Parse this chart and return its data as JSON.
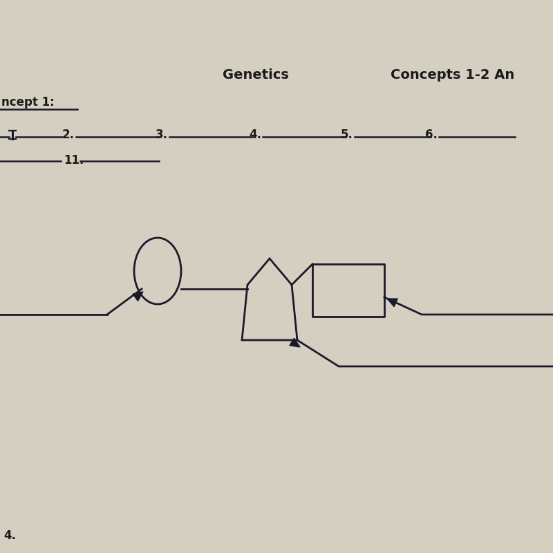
{
  "title1": "Genetics",
  "title2": "Concepts 1-2 An",
  "label_concept": "ncept 1:",
  "label_bottom": "4.",
  "bg_color": "#d4cfc0",
  "line_color": "#1a1a2a",
  "text_color": "#1a1a1a",
  "figsize": [
    8.0,
    8.0
  ],
  "dpi": 100
}
